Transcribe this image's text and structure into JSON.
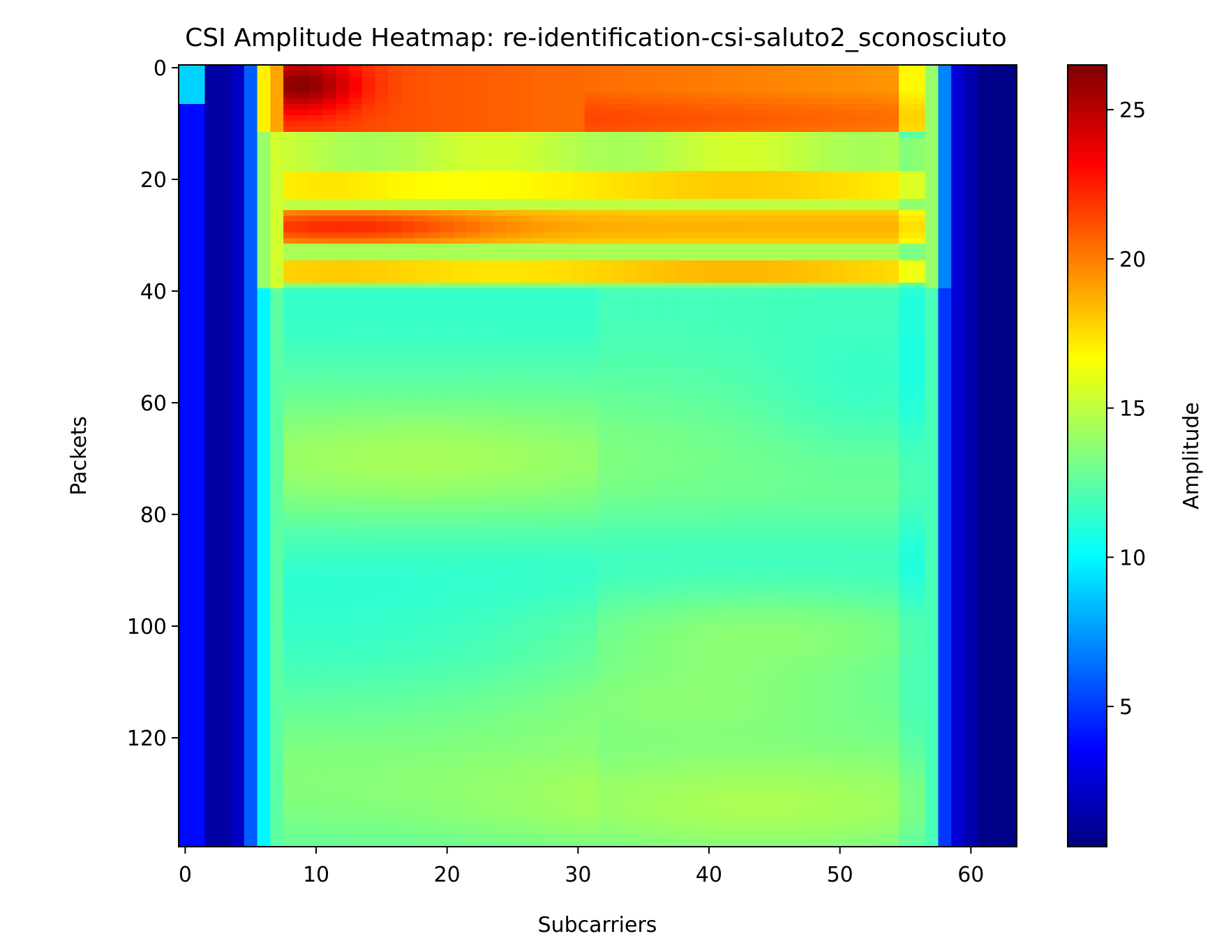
{
  "chart_data": {
    "type": "heatmap",
    "title": "CSI Amplitude Heatmap: re-identification-csi-saluto2_sconosciuto",
    "xlabel": "Subcarriers",
    "ylabel": "Packets",
    "colorbar_label": "Amplitude",
    "colormap": "jet",
    "n_x": 64,
    "n_y": 140,
    "xlim": [
      -0.5,
      63.5
    ],
    "ylim": [
      139.5,
      -0.5
    ],
    "x_ticks": [
      0,
      10,
      20,
      30,
      40,
      50,
      60
    ],
    "y_ticks": [
      0,
      20,
      40,
      60,
      80,
      100,
      120
    ],
    "color_range": [
      0.3,
      26.5
    ],
    "colorbar_ticks": [
      5,
      10,
      15,
      20,
      25
    ],
    "grid": false,
    "amplitude_model": {
      "edge_columns": [
        {
          "x": 0,
          "value": 3.8
        },
        {
          "x": 1,
          "value": 3.8
        },
        {
          "x": 2,
          "value": 1.2
        },
        {
          "x": 3,
          "value": 1.2
        },
        {
          "x": 4,
          "value": 2.0
        },
        {
          "x": 5,
          "value": 6.0
        },
        {
          "x": 6,
          "value": 10.0
        },
        {
          "x": 7,
          "value": 12.5
        },
        {
          "x": 57,
          "value": 8.5
        },
        {
          "x": 58,
          "value": 5.0
        },
        {
          "x": 59,
          "value": 2.5
        },
        {
          "x": 60,
          "value": 1.5
        },
        {
          "x": 61,
          "value": 0.6
        },
        {
          "x": 62,
          "value": 0.5
        },
        {
          "x": 63,
          "value": 0.5
        }
      ],
      "base_level": 12.5,
      "peak_value": 26.3,
      "peak_location": {
        "x": 9,
        "y": 3
      },
      "high_bands_packets": [
        {
          "y_from": 0,
          "y_to": 11,
          "level": 20
        },
        {
          "y_from": 19,
          "y_to": 23,
          "level": 17
        },
        {
          "y_from": 26,
          "y_to": 31,
          "level": 19
        },
        {
          "y_from": 35,
          "y_to": 38,
          "level": 18
        }
      ],
      "lower_region_range": [
        10.5,
        15.5
      ]
    }
  }
}
